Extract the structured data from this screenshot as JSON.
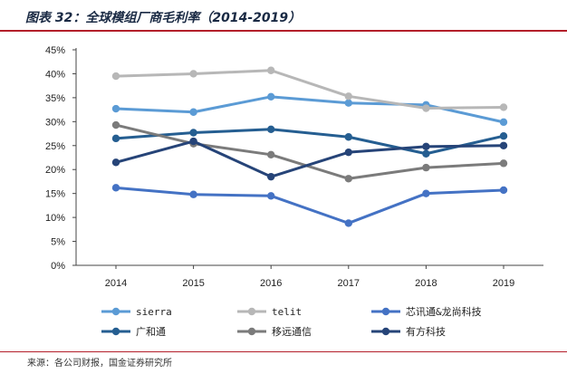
{
  "header": {
    "title": "图表 32：全球模组厂商毛利率（2014-2019）"
  },
  "footer": {
    "source": "来源：各公司财报，国金证券研究所"
  },
  "chart_data": {
    "type": "line",
    "title": "图表 32：全球模组厂商毛利率（2014-2019）",
    "xlabel": "",
    "ylabel": "",
    "categories": [
      "2014",
      "2015",
      "2016",
      "2017",
      "2018",
      "2019"
    ],
    "y_ticks": [
      "0%",
      "5%",
      "10%",
      "15%",
      "20%",
      "25%",
      "30%",
      "35%",
      "40%",
      "45%"
    ],
    "ylim": [
      0,
      45
    ],
    "grid": false,
    "legend_position": "bottom",
    "series": [
      {
        "name": "sierra",
        "color": "#5b9bd5",
        "values": [
          32.7,
          32.0,
          35.2,
          33.9,
          33.5,
          29.9
        ]
      },
      {
        "name": "telit",
        "color": "#b7b7b7",
        "values": [
          39.5,
          40.0,
          40.7,
          35.3,
          32.8,
          33.0
        ]
      },
      {
        "name": "芯讯通&龙尚科技",
        "color": "#4472c4",
        "values": [
          16.2,
          14.8,
          14.5,
          8.8,
          15.0,
          15.7
        ]
      },
      {
        "name": "广和通",
        "color": "#255e91",
        "values": [
          26.5,
          27.7,
          28.4,
          26.8,
          23.3,
          27.0
        ]
      },
      {
        "name": "移远通信",
        "color": "#7b7b7b",
        "values": [
          29.3,
          25.4,
          23.1,
          18.1,
          20.4,
          21.3
        ]
      },
      {
        "name": "有方科技",
        "color": "#264478",
        "values": [
          21.5,
          25.9,
          18.5,
          23.6,
          24.8,
          25.0
        ]
      }
    ]
  }
}
